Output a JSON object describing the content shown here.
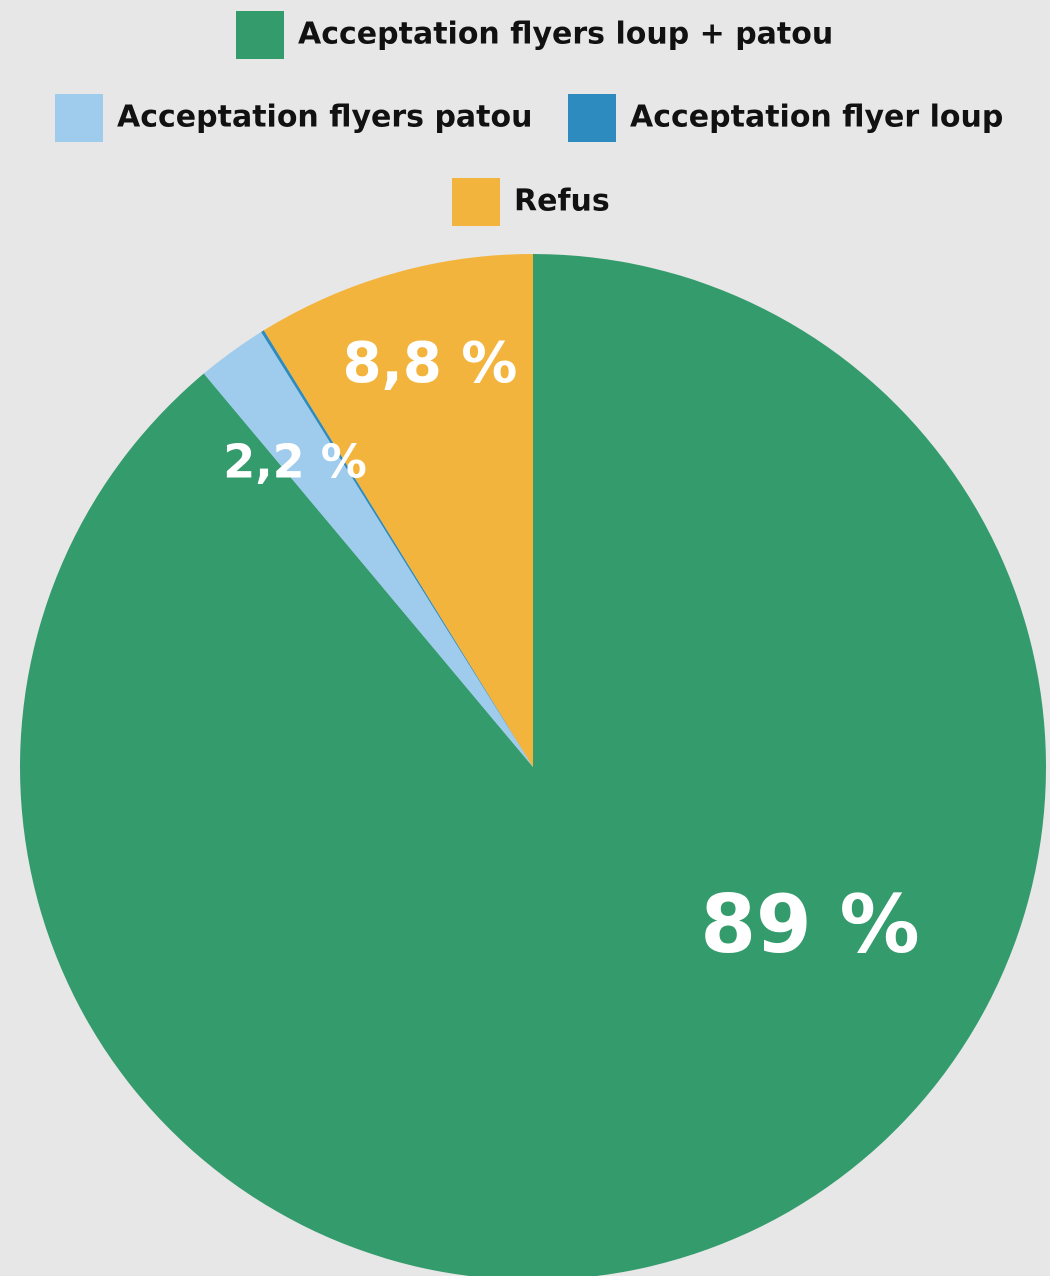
{
  "chart_data": {
    "type": "pie",
    "categories": [
      "Acceptation flyers loup + patou",
      "Acceptation flyers patou",
      "Acceptation flyer loup",
      "Refus"
    ],
    "values": [
      89,
      2.2,
      0.1,
      8.8
    ],
    "value_labels": [
      "89 %",
      "2,2 %",
      null,
      "8,8 %"
    ],
    "colors": [
      "#349b6c",
      "#9fcbec",
      "#2e8bc0",
      "#f3b43e"
    ],
    "legend": "top"
  }
}
